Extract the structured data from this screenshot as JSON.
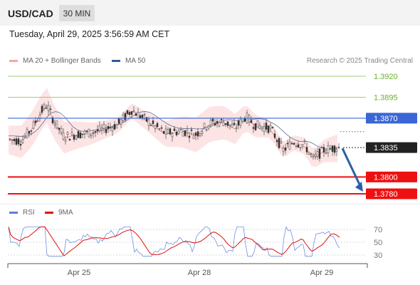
{
  "header": {
    "pair": "USD/CAD",
    "timeframe": "30 MIN"
  },
  "datetime": "Tuesday, April 29, 2025 3:56:59 AM CET",
  "legend": {
    "ma20": {
      "label": "MA 20 + Bollinger Bands",
      "color": "#f4a6a6"
    },
    "ma50": {
      "label": "MA 50",
      "color": "#2f5b9c"
    }
  },
  "credit": "Research © 2025 Trading Central",
  "levels": [
    {
      "value": 1.392,
      "label": "1.3920",
      "kind": "resistance-green"
    },
    {
      "value": 1.3895,
      "label": "1.3895",
      "kind": "resistance-green"
    },
    {
      "value": 1.387,
      "label": "1.3870",
      "kind": "pivot-blue"
    },
    {
      "value": 1.3835,
      "label": "1.3835",
      "kind": "last-price"
    },
    {
      "value": 1.38,
      "label": "1.3800",
      "kind": "support-red"
    },
    {
      "value": 1.378,
      "label": "1.3780",
      "kind": "support-red"
    }
  ],
  "rsi": {
    "legend": [
      {
        "label": "RSI",
        "color": "#5b7fd6"
      },
      {
        "label": "9MA",
        "color": "#e01010"
      }
    ],
    "ticks": [
      "70",
      "50",
      "30"
    ]
  },
  "x_axis": [
    "Apr 25",
    "Apr 28",
    "Apr 29"
  ],
  "colors": {
    "green_level": "#7cc043",
    "blue_level": "#3a66d6",
    "red_level": "#ee1111",
    "arrow": "#2d5ea8",
    "band_fill": "#fde4e4",
    "candle": "#333333"
  }
}
